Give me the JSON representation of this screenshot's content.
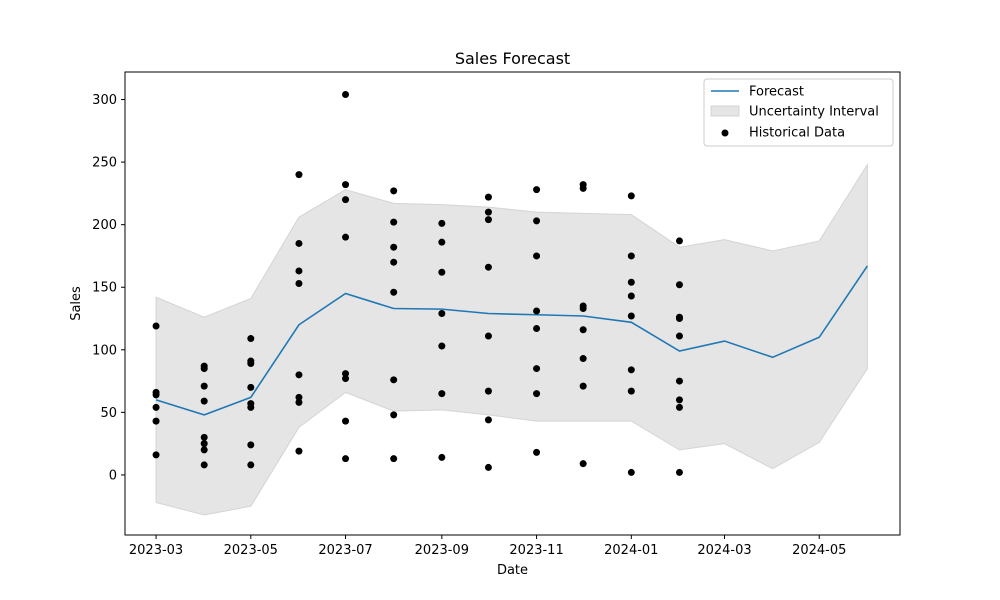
{
  "chart_data": {
    "type": "line",
    "title": "Sales Forecast",
    "xlabel": "Date",
    "ylabel": "Sales",
    "x_ticks": [
      "2023-03",
      "2023-05",
      "2023-07",
      "2023-09",
      "2023-11",
      "2024-01",
      "2024-03",
      "2024-05"
    ],
    "y_ticks": [
      0,
      50,
      100,
      150,
      200,
      250,
      300
    ],
    "xlim": [
      "2023-02-09",
      "2024-06-22"
    ],
    "ylim": [
      -48,
      322
    ],
    "grid": false,
    "legend": {
      "placement": "top-right",
      "entries": [
        "Forecast",
        "Uncertainty Interval",
        "Historical Data"
      ]
    },
    "colors": {
      "forecast": "#1f77b4",
      "interval": "#e5e5e5",
      "historical": "#000000"
    },
    "forecast": {
      "name": "Forecast",
      "dates": [
        "2023-03-01",
        "2023-04-01",
        "2023-05-01",
        "2023-06-01",
        "2023-07-01",
        "2023-08-01",
        "2023-09-01",
        "2023-10-01",
        "2023-11-01",
        "2023-12-01",
        "2024-01-01",
        "2024-02-01",
        "2024-03-01",
        "2024-04-01",
        "2024-05-01",
        "2024-06-01"
      ],
      "values": [
        60,
        48,
        62,
        120,
        145,
        133,
        132.5,
        129,
        128,
        127,
        122,
        99,
        107,
        94,
        110,
        167
      ],
      "lower": [
        -22,
        -32,
        -25,
        38,
        66,
        51,
        52,
        48,
        43,
        43,
        43,
        20,
        25,
        5,
        26,
        85
      ],
      "upper": [
        142,
        126,
        141,
        206,
        228,
        217,
        216,
        214,
        210,
        209,
        208,
        182,
        188,
        179,
        187,
        248
      ]
    },
    "historical": {
      "name": "Historical Data",
      "points": [
        {
          "date": "2023-03-01",
          "values": [
            119,
            66,
            64,
            54,
            43,
            16
          ]
        },
        {
          "date": "2023-04-01",
          "values": [
            87,
            85,
            71,
            59,
            30,
            25,
            20,
            8
          ]
        },
        {
          "date": "2023-05-01",
          "values": [
            109,
            91,
            89,
            70,
            57,
            54,
            24,
            8
          ]
        },
        {
          "date": "2023-06-01",
          "values": [
            240,
            185,
            163,
            153,
            80,
            62,
            58,
            19
          ]
        },
        {
          "date": "2023-07-01",
          "values": [
            304,
            232,
            220,
            190,
            81,
            77,
            43,
            13
          ]
        },
        {
          "date": "2023-08-01",
          "values": [
            227,
            202,
            182,
            170,
            146,
            76,
            48,
            13
          ]
        },
        {
          "date": "2023-09-01",
          "values": [
            201,
            186,
            162,
            129,
            103,
            65,
            14
          ]
        },
        {
          "date": "2023-10-01",
          "values": [
            222,
            210,
            204,
            166,
            111,
            67,
            44,
            6
          ]
        },
        {
          "date": "2023-11-01",
          "values": [
            228,
            203,
            175,
            131,
            117,
            85,
            65,
            18
          ]
        },
        {
          "date": "2023-12-01",
          "values": [
            232,
            229,
            135,
            133,
            116,
            93,
            71,
            9
          ]
        },
        {
          "date": "2024-01-01",
          "values": [
            223,
            175,
            154,
            143,
            127,
            84,
            67,
            2
          ]
        },
        {
          "date": "2024-02-01",
          "values": [
            187,
            152,
            126,
            125,
            111,
            75,
            60,
            54,
            2
          ]
        }
      ]
    }
  }
}
